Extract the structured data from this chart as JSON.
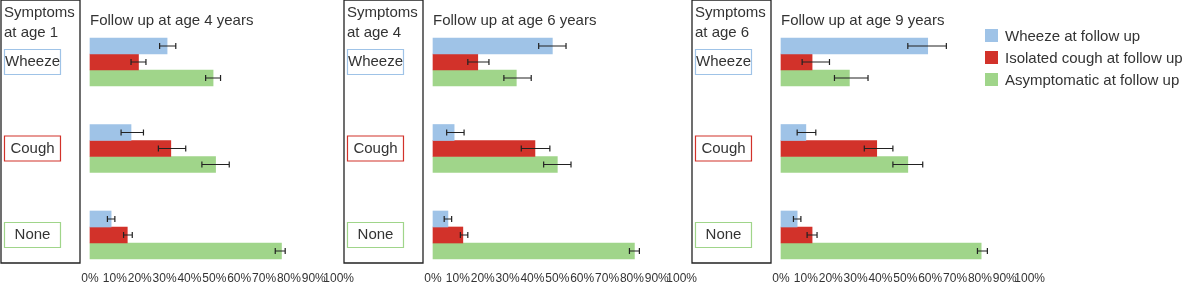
{
  "chart_data": [
    {
      "type": "bar",
      "orientation": "horizontal",
      "title": "Follow up at age 4 years",
      "ylabel": "Symptoms at age 1",
      "categories": [
        "Wheeze",
        "Cough",
        "None"
      ],
      "series": [
        {
          "color": "#9fc3e7",
          "values": [
            31,
            16.5,
            8.5
          ],
          "errors": [
            [
              28,
              34.5
            ],
            [
              12.5,
              21.5
            ],
            [
              7,
              10
            ]
          ]
        },
        {
          "color": "#d2322a",
          "values": [
            19.5,
            32.5,
            15
          ],
          "errors": [
            [
              16.5,
              22.5
            ],
            [
              27.5,
              38.5
            ],
            [
              13.5,
              17
            ]
          ]
        },
        {
          "color": "#a0d58a",
          "values": [
            49.5,
            50.5,
            77
          ],
          "errors": [
            [
              46.5,
              52.5
            ],
            [
              45,
              56
            ],
            [
              74.5,
              78.5
            ]
          ]
        }
      ],
      "xlim": [
        0,
        100
      ],
      "xticks": [
        {
          "value": 0,
          "label": "0%"
        },
        {
          "value": 10,
          "label": "10%"
        },
        {
          "value": 20,
          "label": "20%"
        },
        {
          "value": 30,
          "label": "30%"
        },
        {
          "value": 40,
          "label": "40%"
        },
        {
          "value": 50,
          "label": "50%"
        },
        {
          "value": 60,
          "label": "60%"
        },
        {
          "value": 70,
          "label": "70%"
        },
        {
          "value": 80,
          "label": "80%"
        },
        {
          "value": 90,
          "label": "90%"
        },
        {
          "value": 100,
          "label": "100%"
        }
      ],
      "grid": false
    },
    {
      "type": "bar",
      "orientation": "horizontal",
      "title": "Follow up at age 6 years",
      "ylabel": "Symptoms at age 4",
      "categories": [
        "Wheeze",
        "Cough",
        "None"
      ],
      "series": [
        {
          "color": "#9fc3e7",
          "values": [
            48,
            8.5,
            6
          ],
          "errors": [
            [
              42.5,
              53.5
            ],
            [
              5.5,
              12.5
            ],
            [
              4.5,
              7.5
            ]
          ]
        },
        {
          "color": "#d2322a",
          "values": [
            18,
            41,
            12
          ],
          "errors": [
            [
              14,
              22.5
            ],
            [
              35.5,
              47
            ],
            [
              11,
              14
            ]
          ]
        },
        {
          "color": "#a0d58a",
          "values": [
            33.5,
            50,
            81
          ],
          "errors": [
            [
              28.5,
              39.5
            ],
            [
              44.5,
              55.5
            ],
            [
              79,
              83
            ]
          ]
        }
      ],
      "xlim": [
        0,
        100
      ],
      "xticks": [
        {
          "value": 0,
          "label": "0%"
        },
        {
          "value": 10,
          "label": "10%"
        },
        {
          "value": 20,
          "label": "20%"
        },
        {
          "value": 30,
          "label": "30%"
        },
        {
          "value": 40,
          "label": "40%"
        },
        {
          "value": 50,
          "label": "50%"
        },
        {
          "value": 60,
          "label": "60%"
        },
        {
          "value": 70,
          "label": "70%"
        },
        {
          "value": 80,
          "label": "80%"
        },
        {
          "value": 90,
          "label": "90%"
        },
        {
          "value": 100,
          "label": "100%"
        }
      ],
      "grid": false
    },
    {
      "type": "bar",
      "orientation": "horizontal",
      "title": "Follow up at age 9 years",
      "ylabel": "Symptoms at age 6",
      "categories": [
        "Wheeze",
        "Cough",
        "None"
      ],
      "series": [
        {
          "name": "Wheeze at follow up",
          "color": "#9fc3e7",
          "values": [
            59,
            10,
            6.5
          ],
          "errors": [
            [
              51,
              66.5
            ],
            [
              6.5,
              14
            ],
            [
              5,
              8
            ]
          ]
        },
        {
          "name": "Isolated cough at follow up",
          "color": "#d2322a",
          "values": [
            12.5,
            38.5,
            12.5
          ],
          "errors": [
            [
              8.5,
              19.5
            ],
            [
              33.5,
              45
            ],
            [
              10.5,
              14.5
            ]
          ]
        },
        {
          "name": "Asymptomatic at follow up",
          "color": "#a0d58a",
          "values": [
            27.5,
            51,
            80.5
          ],
          "errors": [
            [
              21.5,
              35
            ],
            [
              45,
              57
            ],
            [
              79,
              83
            ]
          ]
        }
      ],
      "xlim": [
        0,
        100
      ],
      "xticks": [
        {
          "value": 0,
          "label": "0%"
        },
        {
          "value": 10,
          "label": "10%"
        },
        {
          "value": 20,
          "label": "20%"
        },
        {
          "value": 30,
          "label": "30%"
        },
        {
          "value": 40,
          "label": "40%"
        },
        {
          "value": 50,
          "label": "50%"
        },
        {
          "value": 60,
          "label": "60%"
        },
        {
          "value": 70,
          "label": "70%"
        },
        {
          "value": 80,
          "label": "80%"
        },
        {
          "value": 90,
          "label": "90%"
        },
        {
          "value": 100,
          "label": "100%"
        }
      ],
      "grid": false,
      "legend": "top right"
    }
  ]
}
